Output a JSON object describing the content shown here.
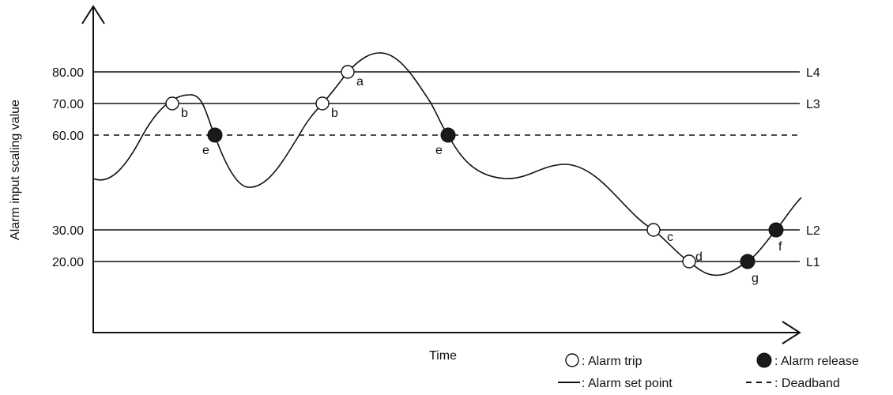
{
  "y_axis": {
    "label": "Alarm input scaling value",
    "ticks": [
      "80.00",
      "70.00",
      "60.00",
      "30.00",
      "20.00"
    ]
  },
  "x_axis": {
    "label": "Time"
  },
  "levels": [
    {
      "name": "L4",
      "value": 80
    },
    {
      "name": "L3",
      "value": 70
    },
    {
      "name": "Deadband",
      "value": 60
    },
    {
      "name": "L2",
      "value": 30
    },
    {
      "name": "L1",
      "value": 20
    }
  ],
  "level_labels": [
    "L4",
    "L3",
    "L2",
    "L1"
  ],
  "points": [
    {
      "label": "b",
      "kind": "trip"
    },
    {
      "label": "e",
      "kind": "release"
    },
    {
      "label": "b",
      "kind": "trip"
    },
    {
      "label": "a",
      "kind": "trip"
    },
    {
      "label": "e",
      "kind": "release"
    },
    {
      "label": "c",
      "kind": "trip"
    },
    {
      "label": "d",
      "kind": "trip"
    },
    {
      "label": "g",
      "kind": "release"
    },
    {
      "label": "f",
      "kind": "release"
    }
  ],
  "legend": {
    "trip": ": Alarm trip",
    "release": ": Alarm release",
    "setpoint": ": Alarm set point",
    "deadband": ": Deadband"
  }
}
